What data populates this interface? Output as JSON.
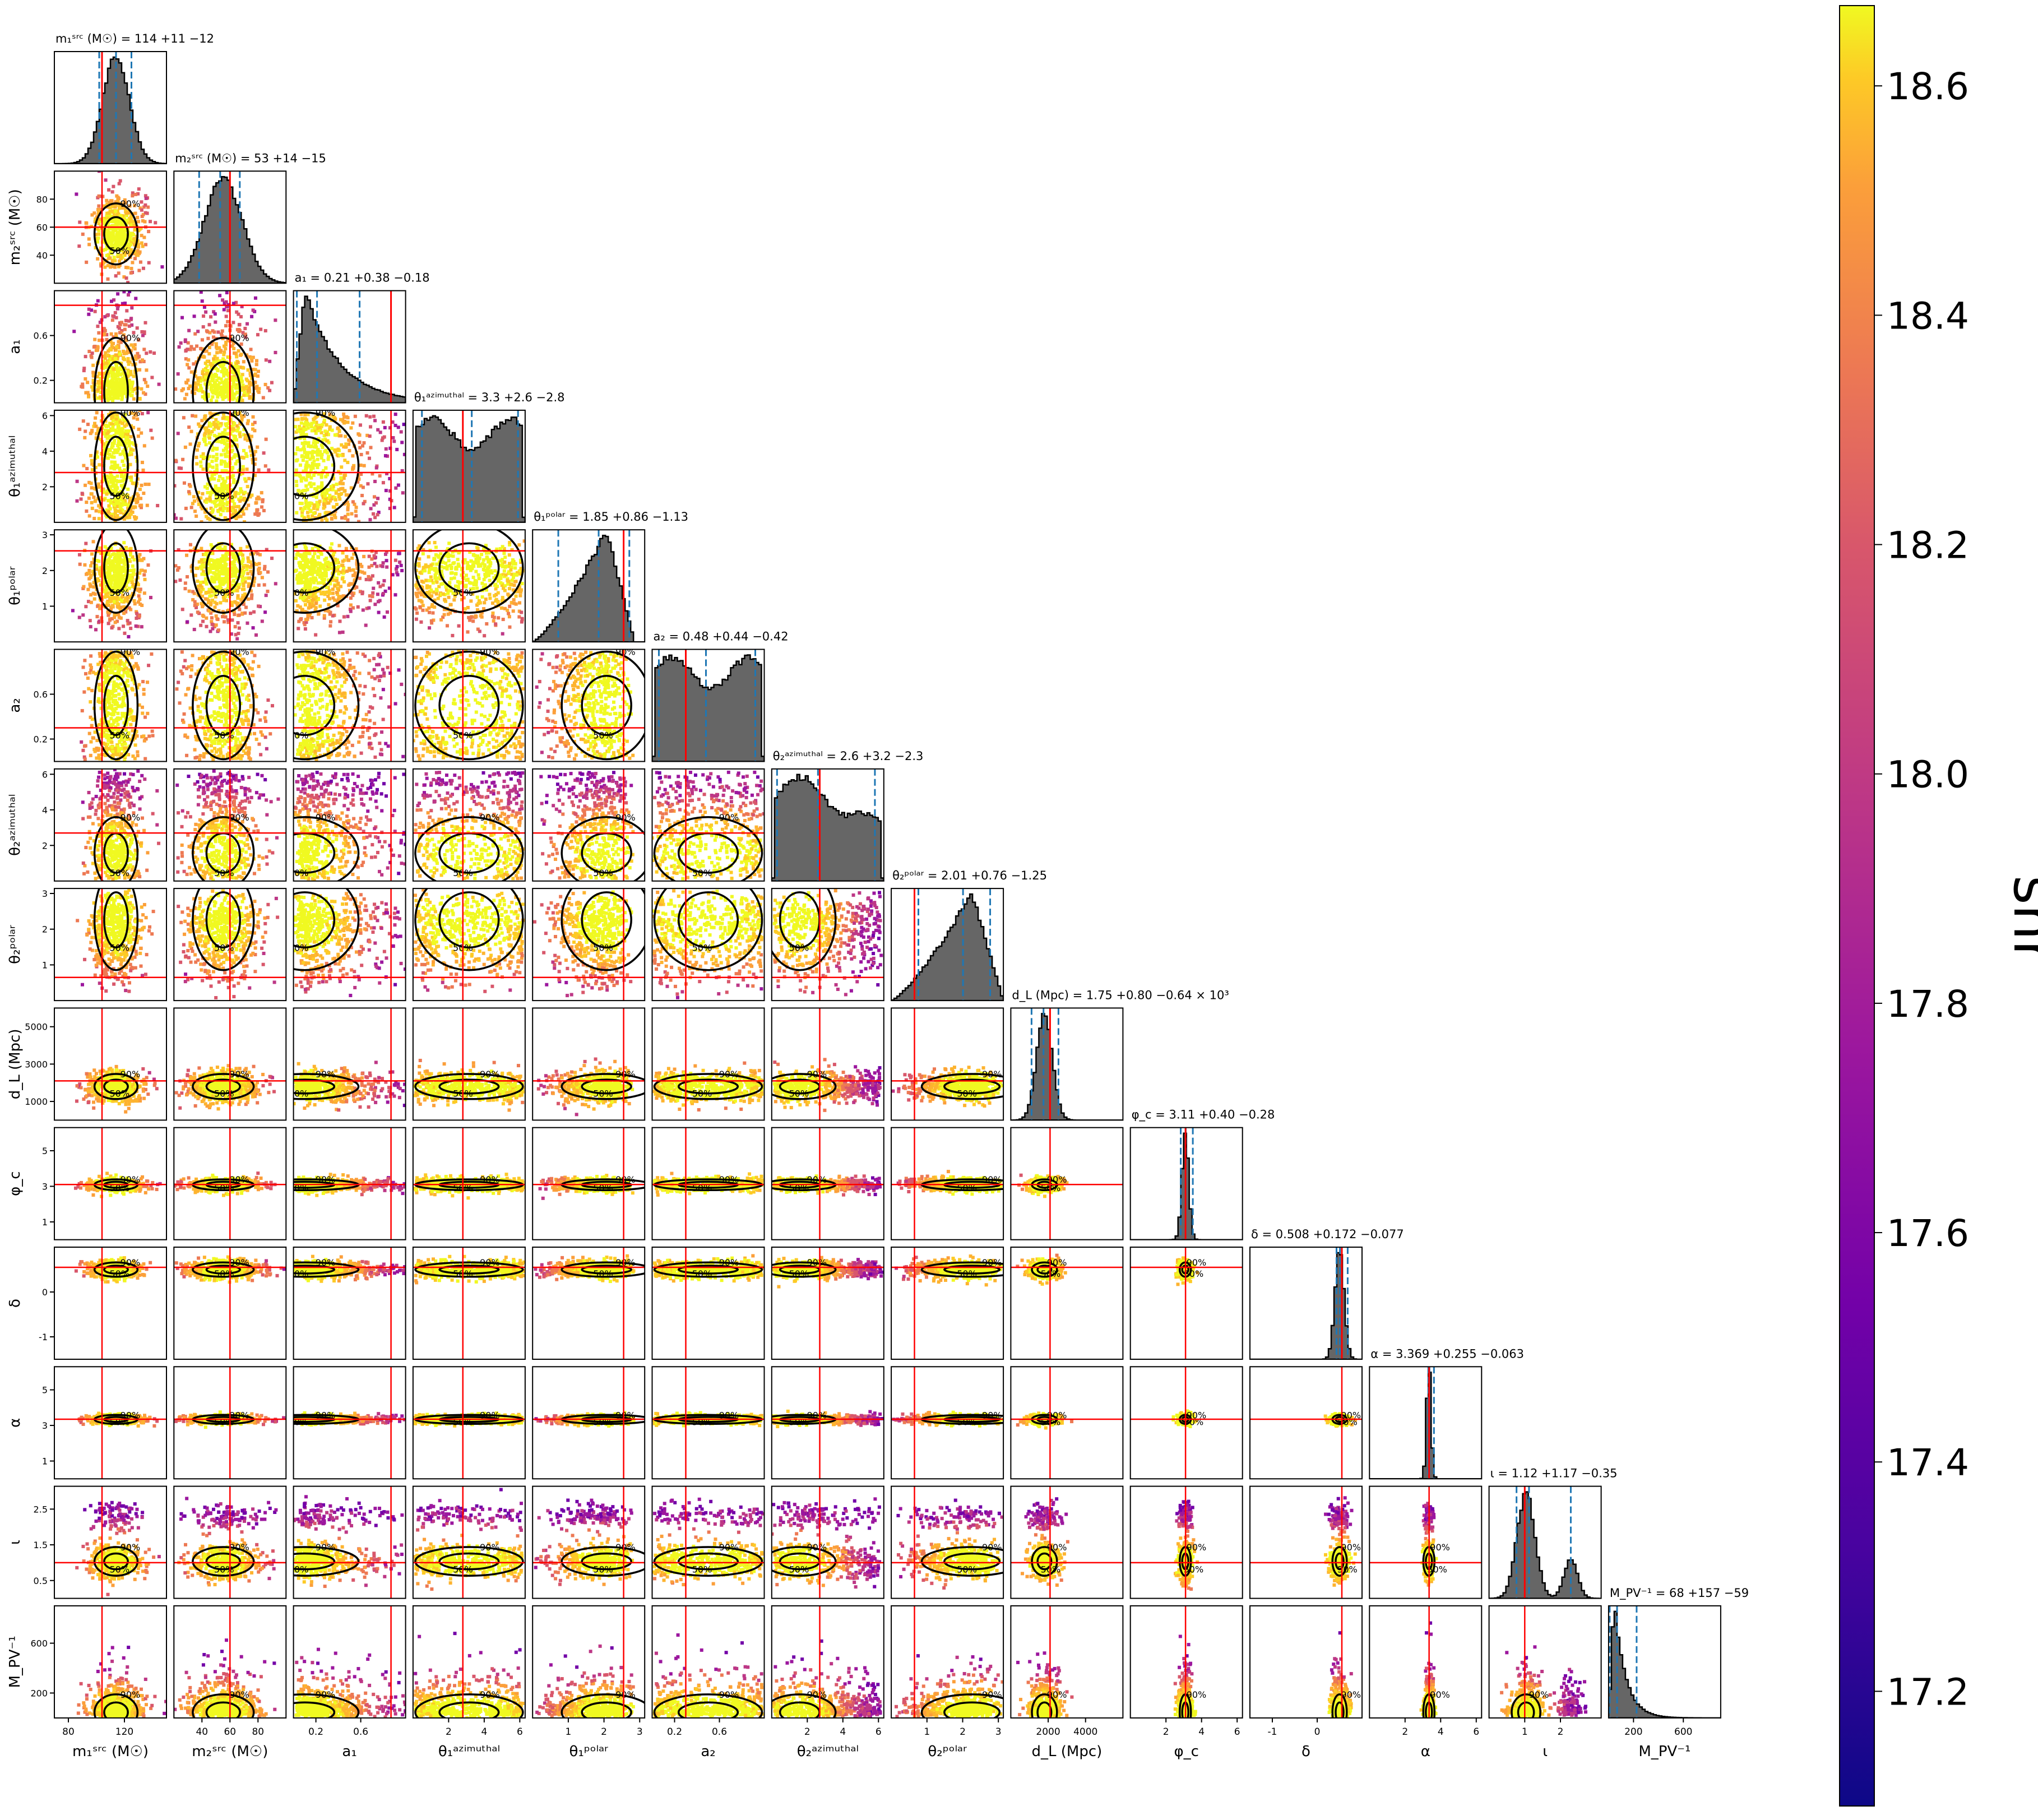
{
  "chart_data": {
    "type": "corner",
    "parameters": [
      {
        "key": "m1src",
        "label": "m₁ˢʳᶜ (M☉)",
        "title": "m₁ˢʳᶜ (M☉) = 114 +11 −12",
        "median": 114,
        "lo": 102,
        "hi": 125,
        "truth": 104,
        "range": [
          70,
          150
        ],
        "ticks": [
          80,
          120
        ],
        "shape": "gauss",
        "mode": 0.55,
        "width": 0.12
      },
      {
        "key": "m2src",
        "label": "m₂ˢʳᶜ (M☉)",
        "title": "m₂ˢʳᶜ (M☉) = 53 +14 −15",
        "median": 53,
        "lo": 38,
        "hi": 67,
        "truth": 60,
        "range": [
          20,
          100
        ],
        "ticks": [
          40,
          60,
          80
        ],
        "shape": "gauss",
        "mode": 0.44,
        "width": 0.17
      },
      {
        "key": "a1",
        "label": "a₁",
        "title": "a₁ = 0.21 +0.38 −0.18",
        "median": 0.21,
        "lo": 0.03,
        "hi": 0.59,
        "truth": 0.87,
        "range": [
          0,
          1
        ],
        "ticks": [
          0.2,
          0.6
        ],
        "shape": "decay",
        "mode": 0.1,
        "width": 0.3
      },
      {
        "key": "th1az",
        "label": "θ₁ᵃᶻⁱᵐᵘᵗʰᵃˡ",
        "title": "θ₁ᵃᶻⁱᵐᵘᵗʰᵃˡ = 3.3 +2.6 −2.8",
        "median": 3.3,
        "lo": 0.5,
        "hi": 5.9,
        "truth": 2.8,
        "range": [
          0,
          6.3
        ],
        "ticks": [
          2,
          4,
          6
        ],
        "shape": "flat",
        "mode": 0.5,
        "width": 0.5
      },
      {
        "key": "th1pol",
        "label": "θ₁ᵖᵒˡᵃʳ",
        "title": "θ₁ᵖᵒˡᵃʳ = 1.85 +0.86 −1.13",
        "median": 1.85,
        "lo": 0.72,
        "hi": 2.71,
        "truth": 2.55,
        "range": [
          0,
          3.14
        ],
        "ticks": [
          1,
          2,
          3
        ],
        "shape": "ramp",
        "mode": 0.66,
        "width": 0.25
      },
      {
        "key": "a2",
        "label": "a₂",
        "title": "a₂ = 0.48 +0.44 −0.42",
        "median": 0.48,
        "lo": 0.06,
        "hi": 0.92,
        "truth": 0.3,
        "range": [
          0,
          1
        ],
        "ticks": [
          0.2,
          0.6
        ],
        "shape": "flat",
        "mode": 0.5,
        "width": 0.5
      },
      {
        "key": "th2az",
        "label": "θ₂ᵃᶻⁱᵐᵘᵗʰᵃˡ",
        "title": "θ₂ᵃᶻⁱᵐᵘᵗʰᵃˡ = 2.6 +3.2 −2.3",
        "median": 2.6,
        "lo": 0.3,
        "hi": 5.8,
        "truth": 2.7,
        "range": [
          0,
          6.3
        ],
        "ticks": [
          2,
          4,
          6
        ],
        "shape": "bimodal",
        "mode": 0.25,
        "width": 0.2
      },
      {
        "key": "th2pol",
        "label": "θ₂ᵖᵒˡᵃʳ",
        "title": "θ₂ᵖᵒˡᵃʳ = 2.01 +0.76 −1.25",
        "median": 2.01,
        "lo": 0.76,
        "hi": 2.77,
        "truth": 0.65,
        "range": [
          0,
          3.14
        ],
        "ticks": [
          1,
          2,
          3
        ],
        "shape": "ramp",
        "mode": 0.72,
        "width": 0.28
      },
      {
        "key": "dL",
        "label": "d_L (Mpc)",
        "title": "d_L (Mpc) = 1.75 +0.80 −0.64 × 10³",
        "median": 1750,
        "lo": 1110,
        "hi": 2550,
        "truth": 2100,
        "range": [
          0,
          6000
        ],
        "ticks": [
          2000,
          4000
        ],
        "yticks": [
          1000,
          3000,
          5000
        ],
        "shape": "gauss",
        "mode": 0.3,
        "width": 0.07
      },
      {
        "key": "phic",
        "label": "φ_c",
        "title": "φ_c = 3.11 +0.40 −0.28",
        "median": 3.11,
        "lo": 2.83,
        "hi": 3.51,
        "truth": 3.1,
        "range": [
          0,
          6.3
        ],
        "ticks": [
          2,
          4,
          6
        ],
        "yticks": [
          1,
          3,
          5
        ],
        "shape": "gauss",
        "mode": 0.49,
        "width": 0.03
      },
      {
        "key": "delta",
        "label": "δ",
        "title": "δ = 0.508 +0.172 −0.077",
        "median": 0.508,
        "lo": 0.431,
        "hi": 0.68,
        "truth": 0.55,
        "range": [
          -1.5,
          1
        ],
        "ticks": [
          -1,
          0
        ],
        "yticks": [
          -1,
          0
        ],
        "shape": "gauss",
        "mode": 0.8,
        "width": 0.04
      },
      {
        "key": "alpha",
        "label": "α",
        "title": "α = 3.369 +0.255 −0.063",
        "median": 3.369,
        "lo": 3.306,
        "hi": 3.624,
        "truth": 3.35,
        "range": [
          0,
          6.3
        ],
        "ticks": [
          2,
          4,
          6
        ],
        "yticks": [
          1,
          3,
          5
        ],
        "shape": "gauss",
        "mode": 0.53,
        "width": 0.02
      },
      {
        "key": "iota",
        "label": "ι",
        "title": "ι = 1.12 +1.17 −0.35",
        "median": 1.12,
        "lo": 0.77,
        "hi": 2.29,
        "truth": 1.0,
        "range": [
          0,
          3.14
        ],
        "ticks": [
          1,
          2
        ],
        "yticks": [
          0.5,
          1.5,
          2.5
        ],
        "shape": "bimodal2",
        "mode": 0.33,
        "width": 0.08
      },
      {
        "key": "MPV",
        "label": "M_PV⁻¹",
        "title": "M_PV⁻¹ = 68 +157 −59",
        "median": 68,
        "lo": 9,
        "hi": 225,
        "truth": null,
        "range": [
          0,
          900
        ],
        "ticks": [
          200,
          600
        ],
        "yticks": [
          200,
          600
        ],
        "shape": "decay",
        "mode": 0.05,
        "width": 0.1
      }
    ],
    "contour_levels": [
      "50%",
      "90%"
    ],
    "colorbar": {
      "label": "snr",
      "ticks": [
        17.2,
        17.4,
        17.6,
        17.8,
        18.0,
        18.2,
        18.4,
        18.6
      ],
      "range": [
        17.1,
        18.67
      ],
      "colormap": "plasma"
    },
    "hist_color": "#666666",
    "truth_color": "#ff0000",
    "quantile_color": "#1f77b4",
    "contour_color": "#000000"
  }
}
